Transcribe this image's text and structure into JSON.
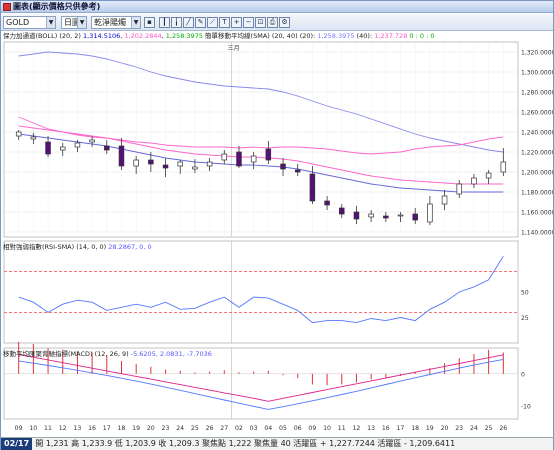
{
  "window": {
    "title": "圖表(顯示價格只供參考)"
  },
  "toolbar": {
    "symbol": "GOLD",
    "period": "日圖",
    "chart_style": "乾淨陽燭",
    "icons": [
      "save-icon",
      "bar-chart-icon",
      "candle-chart-icon",
      "line-chart-icon",
      "draw-icon",
      "trendline-icon",
      "zoom-in-icon",
      "zoom-out-icon",
      "fit-icon",
      "print-icon",
      "settings-icon"
    ]
  },
  "main_legend": {
    "boll_label": "保力加通道(BOLL) (20, 2)",
    "boll_upper": "1,314.5106",
    "boll_lower": "1,202.2844",
    "boll_mid": "1,258.3975",
    "sma_label": "簡單移動平均線(SMA) (20, 40)",
    "sma_20": "1,258.3975",
    "sma_40": "1,237.728",
    "sma_sep1": "(20):",
    "sma_sep2": "(40):",
    "sma_tail": "0 : 0 : 0",
    "colors": {
      "boll": "#0000cc",
      "sma20": "#7777ff",
      "sma40": "#ff55cc",
      "mid": "#00aa00"
    }
  },
  "rsi_legend": {
    "label": "相對強弱指數(RSI-SMA)",
    "params": "(14, 0, 0)",
    "value": "28.2867, 0, 0"
  },
  "macd_legend": {
    "label": "移動平均匯聚背馳指標(MACD)",
    "params": "(12, 26, 9)",
    "value": "-5.6205, 2.0831, -7.7036"
  },
  "month_marker": "三月",
  "x_ticks": [
    "09",
    "10",
    "11",
    "12",
    "13",
    "16",
    "17",
    "18",
    "19",
    "20",
    "23",
    "24",
    "25",
    "26",
    "27",
    "02",
    "03",
    "04",
    "05",
    "06",
    "09",
    "10",
    "11",
    "12",
    "13",
    "16",
    "17",
    "18",
    "19",
    "20",
    "23",
    "24",
    "25",
    "26"
  ],
  "y_ticks_main": [
    "1,320.0000",
    "1,300.0000",
    "1,280.0000",
    "1,260.0000",
    "1,240.0000",
    "1,220.0000",
    "1,200.0000",
    "1,180.0000",
    "1,160.0000",
    "1,140.0000"
  ],
  "y_ticks_rsi": [
    "50",
    "25"
  ],
  "y_ticks_macd": [
    "0",
    "-10"
  ],
  "status": {
    "date": "02/17",
    "text": "開 1,231  高 1,233.9  低 1,203.9  收 1,209.3  聚焦點 1,222  聚焦量 40  活躍區 + 1,227.7244  活躍區 - 1,209.6411"
  },
  "chart_data": [
    {
      "type": "candlestick",
      "y_unit": "price",
      "ylim": [
        1135,
        1330
      ],
      "x": [
        "09",
        "10",
        "11",
        "12",
        "13",
        "16",
        "17",
        "18",
        "19",
        "20",
        "23",
        "24",
        "25",
        "26",
        "27",
        "02",
        "03",
        "04",
        "05",
        "06",
        "09",
        "10",
        "11",
        "12",
        "13",
        "16",
        "17",
        "18",
        "19",
        "20",
        "23",
        "24",
        "25",
        "26"
      ],
      "ohlc": [
        [
          1236,
          1242,
          1232,
          1240
        ],
        [
          1233,
          1239,
          1228,
          1235
        ],
        [
          1230,
          1236,
          1215,
          1218
        ],
        [
          1222,
          1229,
          1216,
          1225
        ],
        [
          1225,
          1232,
          1220,
          1229
        ],
        [
          1230,
          1236,
          1225,
          1232
        ],
        [
          1226,
          1232,
          1218,
          1222
        ],
        [
          1226,
          1234,
          1202,
          1206
        ],
        [
          1206,
          1216,
          1198,
          1212
        ],
        [
          1212,
          1220,
          1200,
          1208
        ],
        [
          1207,
          1214,
          1195,
          1204
        ],
        [
          1206,
          1212,
          1198,
          1210
        ],
        [
          1203,
          1213,
          1199,
          1205
        ],
        [
          1206,
          1214,
          1201,
          1210
        ],
        [
          1212,
          1222,
          1208,
          1218
        ],
        [
          1220,
          1226,
          1204,
          1206
        ],
        [
          1210,
          1220,
          1203,
          1216
        ],
        [
          1223,
          1231,
          1208,
          1212
        ],
        [
          1208,
          1214,
          1196,
          1203
        ],
        [
          1202,
          1208,
          1196,
          1200
        ],
        [
          1198,
          1206,
          1168,
          1171
        ],
        [
          1171,
          1176,
          1162,
          1167
        ],
        [
          1164,
          1168,
          1154,
          1158
        ],
        [
          1160,
          1166,
          1148,
          1153
        ],
        [
          1155,
          1162,
          1150,
          1158
        ],
        [
          1156,
          1160,
          1150,
          1154
        ],
        [
          1156,
          1160,
          1150,
          1157
        ],
        [
          1158,
          1164,
          1148,
          1152
        ],
        [
          1150,
          1176,
          1147,
          1168
        ],
        [
          1168,
          1182,
          1162,
          1176
        ],
        [
          1178,
          1192,
          1174,
          1188
        ],
        [
          1188,
          1198,
          1184,
          1194
        ],
        [
          1194,
          1202,
          1188,
          1199
        ],
        [
          1200,
          1224,
          1196,
          1210
        ]
      ],
      "series": [
        {
          "name": "BOLL",
          "values": [
            1316,
            1318,
            1320,
            1319,
            1318,
            1316,
            1313,
            1309,
            1305,
            1300,
            1296,
            1293,
            1290,
            1288,
            1286,
            1285,
            1284,
            1283,
            1280,
            1276,
            1271,
            1266,
            1262,
            1258,
            1253,
            1248,
            1243,
            1238,
            1234,
            1231,
            1228,
            1225,
            1222,
            1220
          ]
        },
        {
          "name": "SMA",
          "values": [
            1238,
            1236,
            1234,
            1232,
            1230,
            1228,
            1226,
            1223,
            1220,
            1217,
            1214,
            1212,
            1210,
            1209,
            1208,
            1207,
            1207,
            1206,
            1205,
            1203,
            1200,
            1197,
            1194,
            1191,
            1188,
            1186,
            1184,
            1183,
            1182,
            1181,
            1180,
            1180,
            1180,
            1180
          ]
        }
      ]
    },
    {
      "type": "line",
      "name": "RSI",
      "ylim": [
        0,
        100
      ],
      "values": [
        45,
        40,
        30,
        38,
        42,
        40,
        32,
        35,
        38,
        35,
        40,
        33,
        34,
        40,
        45,
        35,
        45,
        44,
        38,
        32,
        20,
        22,
        22,
        20,
        24,
        22,
        25,
        22,
        33,
        40,
        50,
        55,
        62,
        85
      ]
    },
    {
      "type": "bar",
      "name": "MACD",
      "ylim": [
        -14,
        8
      ],
      "values": [
        4.5,
        4.2,
        3.6,
        3.4,
        3.2,
        3.0,
        2.6,
        1.8,
        1.4,
        1.0,
        0.6,
        0.4,
        0.2,
        0.3,
        0.5,
        0.2,
        0.3,
        0.4,
        -0.2,
        -0.6,
        -1.5,
        -1.6,
        -1.5,
        -1.2,
        -0.8,
        -0.5,
        -0.3,
        0.2,
        0.8,
        1.5,
        2.2,
        2.8,
        3.4,
        3.0
      ]
    }
  ]
}
